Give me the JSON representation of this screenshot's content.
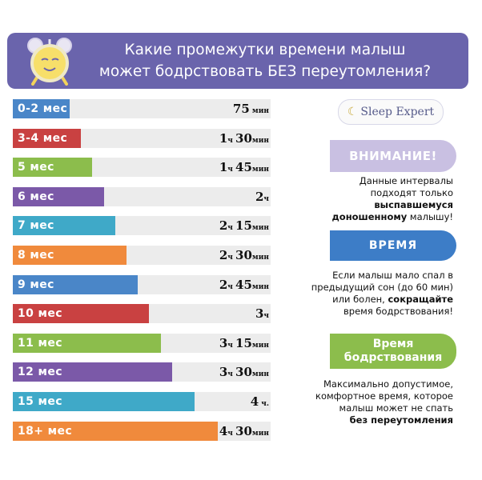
{
  "header": {
    "title_line1": "Какие промежутки времени малыш",
    "title_line2": "может бодрствовать БЕЗ переутомления?"
  },
  "colors": {
    "header_bg": "#6a64ac",
    "track": "#ececec",
    "blue": "#4a86c8",
    "red": "#c94141",
    "green": "#8cbd4c",
    "purple": "#7b59a8",
    "teal": "#3fa9c8",
    "orange": "#f08a3c"
  },
  "chart_data": {
    "type": "bar",
    "orientation": "horizontal",
    "unit": "минуты",
    "categories": [
      "0-2 мес",
      "3-4 мес",
      "5 мес",
      "6 мес",
      "7 мес",
      "8 мес",
      "9 мес",
      "10 мес",
      "11 мес",
      "12 мес",
      "15 мес",
      "18+ мес"
    ],
    "values": [
      75,
      90,
      105,
      120,
      135,
      150,
      165,
      180,
      195,
      210,
      240,
      270
    ],
    "value_labels": [
      {
        "main": "75",
        "unit": " мин"
      },
      {
        "main": "1",
        "unit": "ч ",
        "main2": "30",
        "unit2": "мин"
      },
      {
        "main": "1",
        "unit": "ч ",
        "main2": "45",
        "unit2": "мин"
      },
      {
        "main": "2",
        "unit": "ч",
        "main2": "",
        "unit2": ""
      },
      {
        "main": "2",
        "unit": "ч ",
        "main2": "15",
        "unit2": "мин"
      },
      {
        "main": "2",
        "unit": "ч ",
        "main2": "30",
        "unit2": "мин"
      },
      {
        "main": "2",
        "unit": "ч ",
        "main2": "45",
        "unit2": "мин"
      },
      {
        "main": "3",
        "unit": "ч",
        "main2": "",
        "unit2": ""
      },
      {
        "main": "3",
        "unit": "ч ",
        "main2": "15",
        "unit2": "мин"
      },
      {
        "main": "3",
        "unit": "ч ",
        "main2": "30",
        "unit2": "мин"
      },
      {
        "main": "4",
        "unit": " ч.",
        "main2": "",
        "unit2": ""
      },
      {
        "main": "4",
        "unit": "ч ",
        "main2": "30",
        "unit2": "мин"
      }
    ],
    "bar_colors": [
      "#4a86c8",
      "#c94141",
      "#8cbd4c",
      "#7b59a8",
      "#3fa9c8",
      "#f08a3c",
      "#4a86c8",
      "#c94141",
      "#8cbd4c",
      "#7b59a8",
      "#3fa9c8",
      "#f08a3c"
    ],
    "xlim": [
      0,
      340
    ],
    "grid": false,
    "legend": "none"
  },
  "sidebar": {
    "logo": "Sleep Expert",
    "attention_label": "ВНИМАНИЕ!",
    "note1_line1": "Данные интервалы",
    "note1_line2": "подходят только",
    "note1_bold1": "выспавшемуся",
    "note1_bold2": "доношенному",
    "note1_tail": " малышу!",
    "time_label": "ВРЕМЯ",
    "note2_line1": "Если малыш мало спал в",
    "note2_line2": "предыдущий сон (до 60 мин)",
    "note2_line3a": "или болен, ",
    "note2_line3b": "сокращайте",
    "note2_line4": "время бодрствования!",
    "wake_label_line1": "Время",
    "wake_label_line2": "бодрствования",
    "note3_line1": "Максимально допустимое,",
    "note3_line2": "комфортное  время, которое",
    "note3_line3": "малыш может не спать",
    "note3_bold": "без переутомления"
  }
}
